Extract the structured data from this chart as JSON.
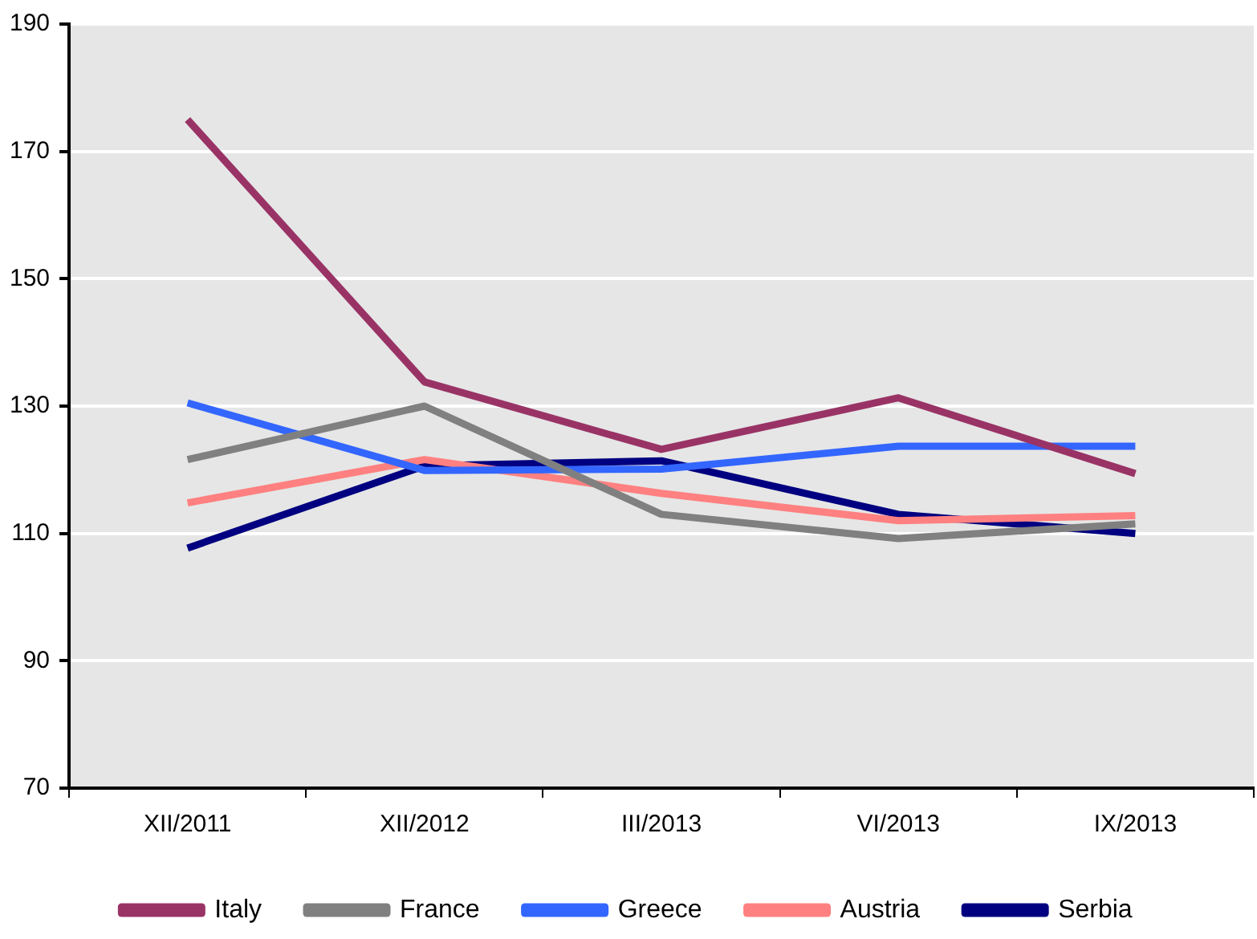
{
  "chart_data": {
    "type": "line",
    "categories": [
      "XII/2011",
      "XII/2012",
      "III/2013",
      "VI/2013",
      "IX/2013"
    ],
    "series": [
      {
        "name": "Italy",
        "color": "#993366",
        "values": [
          175,
          133.8,
          123.2,
          131.3,
          119.4
        ]
      },
      {
        "name": "France",
        "color": "#808080",
        "values": [
          121.6,
          130,
          113,
          109.2,
          111.5
        ]
      },
      {
        "name": "Greece",
        "color": "#3366ff",
        "values": [
          130.5,
          119.9,
          120.1,
          123.7,
          123.7
        ]
      },
      {
        "name": "Austria",
        "color": "#ff8080",
        "values": [
          114.8,
          121.6,
          116.3,
          112,
          112.8
        ]
      },
      {
        "name": "Serbia",
        "color": "#000080",
        "values": [
          107.7,
          120.6,
          121.4,
          113,
          110
        ]
      }
    ],
    "ylim": [
      70,
      190
    ],
    "yticks": [
      70,
      90,
      110,
      130,
      150,
      170,
      190
    ],
    "grid": "y",
    "legend": "bottom",
    "marker": "none",
    "line_style": "solid"
  }
}
